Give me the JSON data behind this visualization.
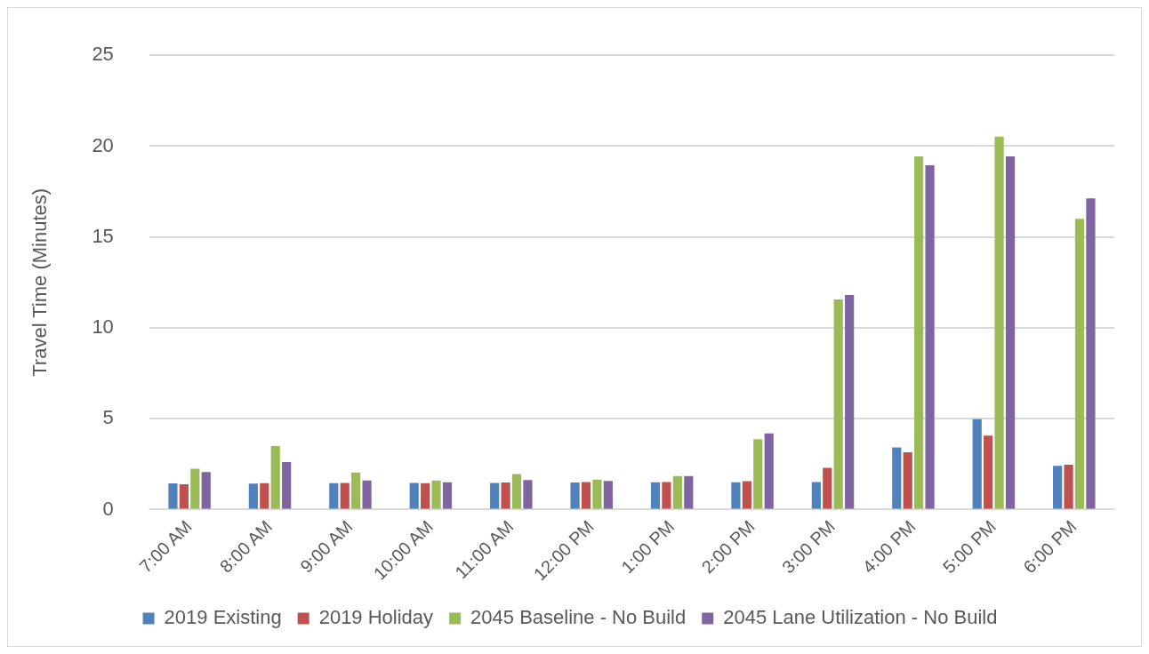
{
  "chart_data": {
    "type": "bar",
    "ylabel": "Travel Time (Minutes)",
    "categories": [
      "7:00 AM",
      "8:00 AM",
      "9:00 AM",
      "10:00 AM",
      "11:00 AM",
      "12:00 PM",
      "1:00 PM",
      "2:00 PM",
      "3:00 PM",
      "4:00 PM",
      "5:00 PM",
      "6:00 PM"
    ],
    "series": [
      {
        "name": "2019 Existing",
        "color": "#4f81bd",
        "values": [
          1.44,
          1.43,
          1.45,
          1.47,
          1.47,
          1.49,
          1.5,
          1.5,
          1.52,
          3.42,
          4.97,
          2.41
        ]
      },
      {
        "name": "2019 Holiday",
        "color": "#c0504d",
        "values": [
          1.39,
          1.45,
          1.47,
          1.45,
          1.49,
          1.51,
          1.52,
          1.57,
          2.3,
          3.15,
          4.07,
          2.47
        ]
      },
      {
        "name": "2045 Baseline - No Build",
        "color": "#9bbb59",
        "values": [
          2.25,
          3.5,
          2.04,
          1.6,
          1.95,
          1.65,
          1.85,
          3.87,
          11.56,
          19.44,
          20.52,
          16.0
        ]
      },
      {
        "name": "2045 Lane Utilization - No Build",
        "color": "#8064a2",
        "values": [
          2.07,
          2.61,
          1.6,
          1.5,
          1.63,
          1.58,
          1.85,
          4.19,
          11.81,
          18.95,
          19.44,
          17.13
        ]
      }
    ],
    "ylim": [
      0,
      25
    ],
    "yticks": [
      0,
      5,
      10,
      15,
      20,
      25
    ],
    "grid": "y",
    "legend": "bottom"
  }
}
